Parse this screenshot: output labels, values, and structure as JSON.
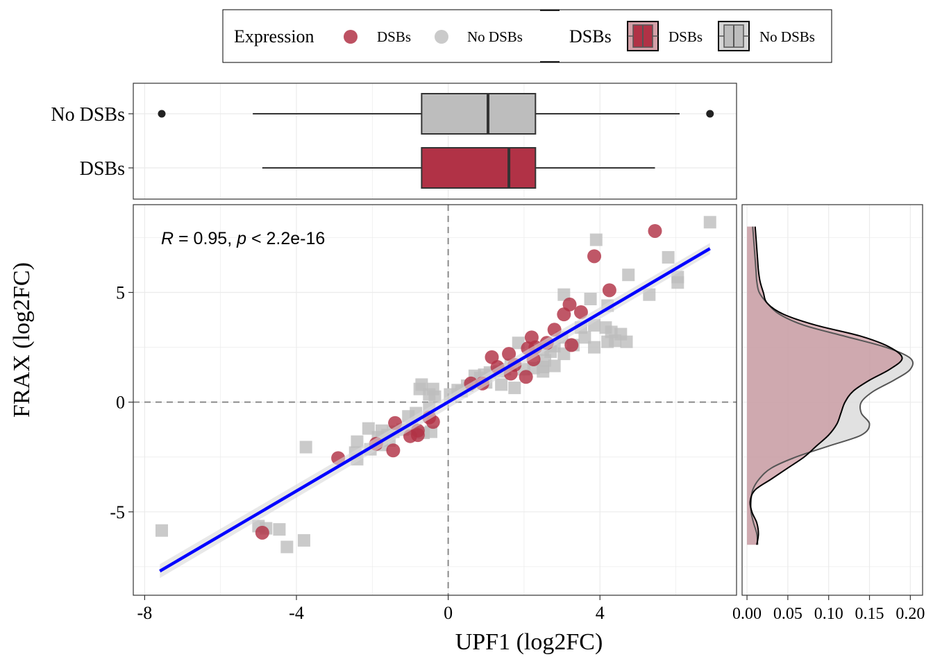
{
  "legend": {
    "expression_title": "Expression",
    "expression_items": [
      {
        "label": "DSBs",
        "color": "#b13246"
      },
      {
        "label": "No DSBs",
        "color": "#bdbdbd"
      }
    ],
    "box_title": "DSBs",
    "box_items": [
      {
        "label": "DSBs",
        "color": "#b13246"
      },
      {
        "label": "No DSBs",
        "color": "#bdbdbd"
      }
    ]
  },
  "chart_data": [
    {
      "type": "scatter",
      "xlabel": "UPF1 (log2FC)",
      "ylabel": "FRAX (log2FC)",
      "xlim": [
        -8.3,
        7.6
      ],
      "ylim": [
        -8.8,
        9.0
      ],
      "x_ticks": [
        -8,
        -4,
        0,
        4
      ],
      "x_tick_labels": [
        "-8",
        "-4",
        "0",
        "4"
      ],
      "y_ticks": [
        -5,
        0,
        5
      ],
      "y_tick_labels": [
        "-5",
        "0",
        "5"
      ],
      "grid": true,
      "annotation": {
        "R": "R",
        "r_value": " = 0.95, ",
        "p": "p",
        "p_value": " < 2.2e-16"
      },
      "reference_lines": {
        "x": 0,
        "y": 0
      },
      "fit_line": {
        "x": [
          -7.6,
          6.9
        ],
        "y": [
          -7.7,
          7.0
        ],
        "color": "#0000ff"
      },
      "series": [
        {
          "name": "DSBs",
          "color": "#b13246",
          "marker": "circle",
          "points": [
            [
              5.45,
              7.8
            ],
            [
              3.85,
              6.65
            ],
            [
              4.25,
              5.1
            ],
            [
              3.2,
              4.45
            ],
            [
              3.5,
              4.1
            ],
            [
              3.05,
              4.0
            ],
            [
              2.8,
              3.3
            ],
            [
              2.2,
              2.95
            ],
            [
              2.6,
              2.7
            ],
            [
              3.25,
              2.6
            ],
            [
              2.3,
              2.5
            ],
            [
              2.1,
              2.45
            ],
            [
              1.6,
              2.2
            ],
            [
              1.15,
              2.05
            ],
            [
              1.75,
              1.7
            ],
            [
              2.25,
              1.95
            ],
            [
              1.65,
              1.3
            ],
            [
              2.05,
              1.15
            ],
            [
              0.9,
              0.85
            ],
            [
              0.6,
              0.85
            ],
            [
              1.3,
              1.6
            ],
            [
              -0.5,
              -0.7
            ],
            [
              -0.4,
              -0.9
            ],
            [
              -0.8,
              -1.3
            ],
            [
              -1.0,
              -1.55
            ],
            [
              -0.8,
              -1.5
            ],
            [
              -1.4,
              -0.95
            ],
            [
              -1.9,
              -1.9
            ],
            [
              -1.45,
              -2.2
            ],
            [
              -2.9,
              -2.55
            ],
            [
              -4.9,
              -5.95
            ]
          ]
        },
        {
          "name": "No DSBs",
          "color": "#bdbdbd",
          "marker": "square",
          "points": [
            [
              6.9,
              8.2
            ],
            [
              3.9,
              7.4
            ],
            [
              5.8,
              6.6
            ],
            [
              6.05,
              5.7
            ],
            [
              6.05,
              5.45
            ],
            [
              4.75,
              5.8
            ],
            [
              5.3,
              4.9
            ],
            [
              3.05,
              4.9
            ],
            [
              3.75,
              4.7
            ],
            [
              4.2,
              4.4
            ],
            [
              3.5,
              3.4
            ],
            [
              3.85,
              3.5
            ],
            [
              4.15,
              3.4
            ],
            [
              4.3,
              3.2
            ],
            [
              4.55,
              3.1
            ],
            [
              3.0,
              2.95
            ],
            [
              3.6,
              2.95
            ],
            [
              4.2,
              2.75
            ],
            [
              4.4,
              2.8
            ],
            [
              4.7,
              2.75
            ],
            [
              3.85,
              2.5
            ],
            [
              3.3,
              2.6
            ],
            [
              2.8,
              2.55
            ],
            [
              2.5,
              2.4
            ],
            [
              3.05,
              2.2
            ],
            [
              2.7,
              2.3
            ],
            [
              2.55,
              1.9
            ],
            [
              2.8,
              1.65
            ],
            [
              2.5,
              1.6
            ],
            [
              2.25,
              1.55
            ],
            [
              2.0,
              1.5
            ],
            [
              2.5,
              1.4
            ],
            [
              1.85,
              2.7
            ],
            [
              1.65,
              1.7
            ],
            [
              1.5,
              1.5
            ],
            [
              1.35,
              1.4
            ],
            [
              1.1,
              1.35
            ],
            [
              0.95,
              1.25
            ],
            [
              0.85,
              1.1
            ],
            [
              0.7,
              1.2
            ],
            [
              1.0,
              0.9
            ],
            [
              1.4,
              0.8
            ],
            [
              1.75,
              0.65
            ],
            [
              0.5,
              0.75
            ],
            [
              0.35,
              0.5
            ],
            [
              0.25,
              0.55
            ],
            [
              0.05,
              0.35
            ],
            [
              -0.35,
              0.25
            ],
            [
              -0.5,
              0.35
            ],
            [
              -0.4,
              0.6
            ],
            [
              -0.75,
              0.6
            ],
            [
              -0.7,
              0.8
            ],
            [
              -0.5,
              -0.3
            ],
            [
              -0.85,
              -0.5
            ],
            [
              -1.05,
              -0.65
            ],
            [
              -0.45,
              -1.35
            ],
            [
              -0.65,
              -1.4
            ],
            [
              -0.95,
              -1.2
            ],
            [
              -1.2,
              -1.25
            ],
            [
              -1.45,
              -1.35
            ],
            [
              -1.6,
              -1.5
            ],
            [
              -1.75,
              -1.3
            ],
            [
              -2.1,
              -1.2
            ],
            [
              -1.85,
              -1.6
            ],
            [
              -1.55,
              -1.75
            ],
            [
              -1.75,
              -1.95
            ],
            [
              -2.05,
              -2.15
            ],
            [
              -2.4,
              -1.8
            ],
            [
              -2.45,
              -2.3
            ],
            [
              -2.4,
              -2.6
            ],
            [
              -3.75,
              -2.05
            ],
            [
              -3.8,
              -6.3
            ],
            [
              -4.25,
              -6.6
            ],
            [
              -4.45,
              -5.8
            ],
            [
              -4.8,
              -5.75
            ],
            [
              -5.0,
              -5.65
            ],
            [
              -7.55,
              -5.85
            ]
          ]
        }
      ]
    },
    {
      "type": "boxplot",
      "orientation": "horizontal",
      "xlim": [
        -8.3,
        7.6
      ],
      "categories": [
        "No DSBs",
        "DSBs"
      ],
      "series": [
        {
          "name": "No DSBs",
          "color": "#bdbdbd",
          "whisker_low": -5.15,
          "q1": -0.7,
          "median": 1.05,
          "q3": 2.3,
          "whisker_high": 6.1,
          "outliers": [
            -7.55,
            6.9
          ]
        },
        {
          "name": "DSBs",
          "color": "#b13246",
          "whisker_low": -4.9,
          "q1": -0.7,
          "median": 1.6,
          "q3": 2.3,
          "whisker_high": 5.45,
          "outliers": []
        }
      ]
    },
    {
      "type": "area",
      "orientation": "vertical-density",
      "xlabel": "",
      "x_ticks": [
        0.0,
        0.05,
        0.1,
        0.15,
        0.2
      ],
      "x_tick_labels": [
        "0.00",
        "0.05",
        "0.10",
        "0.15",
        "0.20"
      ],
      "xlim": [
        -0.006,
        0.215
      ],
      "ylim": [
        -8.8,
        9.0
      ],
      "series": [
        {
          "name": "DSBs",
          "color": "#b13246",
          "y": [
            -6.5,
            -6.0,
            -5.5,
            -5.0,
            -4.5,
            -4.0,
            -3.5,
            -3.0,
            -2.5,
            -2.0,
            -1.5,
            -1.0,
            -0.5,
            0.0,
            0.5,
            1.0,
            1.5,
            2.0,
            2.5,
            3.0,
            3.5,
            4.0,
            4.5,
            5.0,
            5.5,
            6.0,
            6.5,
            7.0,
            7.5,
            8.0
          ],
          "density": [
            0.012,
            0.014,
            0.012,
            0.006,
            0.004,
            0.01,
            0.03,
            0.05,
            0.07,
            0.085,
            0.1,
            0.11,
            0.115,
            0.12,
            0.13,
            0.15,
            0.175,
            0.19,
            0.175,
            0.14,
            0.085,
            0.045,
            0.025,
            0.02,
            0.016,
            0.014,
            0.013,
            0.012,
            0.011,
            0.01
          ]
        },
        {
          "name": "No DSBs",
          "color": "#bdbdbd",
          "y": [
            -6.5,
            -6.0,
            -5.5,
            -5.0,
            -4.5,
            -4.0,
            -3.5,
            -3.0,
            -2.5,
            -2.0,
            -1.5,
            -1.0,
            -0.5,
            0.0,
            0.5,
            1.0,
            1.5,
            2.0,
            2.5,
            3.0,
            3.5,
            4.0,
            4.5,
            5.0,
            5.5,
            6.0,
            6.5,
            7.0,
            7.5,
            8.0
          ],
          "density": [
            0.013,
            0.012,
            0.008,
            0.005,
            0.005,
            0.007,
            0.015,
            0.03,
            0.06,
            0.1,
            0.14,
            0.15,
            0.14,
            0.14,
            0.155,
            0.18,
            0.2,
            0.2,
            0.17,
            0.12,
            0.07,
            0.04,
            0.025,
            0.015,
            0.012,
            0.011,
            0.01,
            0.009,
            0.008,
            0.007
          ]
        }
      ]
    }
  ]
}
